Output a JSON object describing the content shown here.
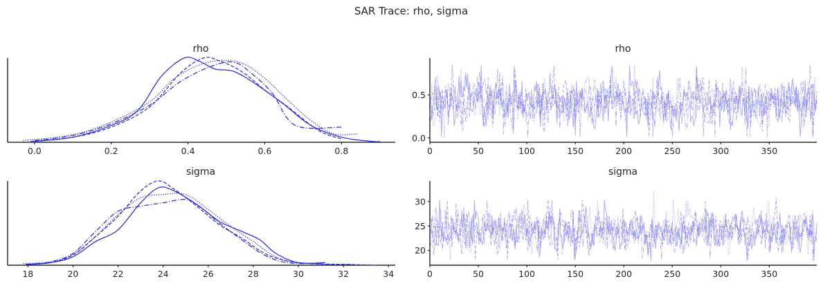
{
  "figure": {
    "title": "SAR Trace: rho, sigma"
  },
  "colors": {
    "line": "#2b2bd6",
    "trace": "#6b6bf0"
  },
  "chart_data": [
    {
      "id": "rho-kde",
      "type": "line",
      "title": "rho",
      "xlabel": "",
      "ylabel": "",
      "xlim": [
        -0.07,
        0.94
      ],
      "ylim": [
        0,
        1
      ],
      "xticks": [
        0.0,
        0.2,
        0.4,
        0.6,
        0.8
      ],
      "xtick_labels": [
        "0.0",
        "0.2",
        "0.4",
        "0.6",
        "0.8"
      ],
      "grid": false,
      "series": [
        {
          "style": "solid",
          "x": [
            0.0,
            0.1,
            0.2,
            0.27,
            0.33,
            0.39,
            0.43,
            0.47,
            0.52,
            0.58,
            0.65,
            0.72,
            0.8,
            0.88,
            0.9
          ],
          "y": [
            0.01,
            0.06,
            0.2,
            0.38,
            0.78,
            1.0,
            0.96,
            0.87,
            0.84,
            0.68,
            0.45,
            0.2,
            0.06,
            0.01,
            0.01
          ]
        },
        {
          "style": "dashed",
          "x": [
            -0.01,
            0.1,
            0.2,
            0.3,
            0.38,
            0.44,
            0.48,
            0.54,
            0.6,
            0.66,
            0.74,
            0.8
          ],
          "y": [
            0.01,
            0.06,
            0.18,
            0.42,
            0.82,
            1.0,
            0.97,
            0.84,
            0.62,
            0.42,
            0.14,
            0.04
          ]
        },
        {
          "style": "dotted",
          "x": [
            -0.03,
            0.1,
            0.2,
            0.3,
            0.36,
            0.42,
            0.48,
            0.54,
            0.6,
            0.66,
            0.72,
            0.78,
            0.84
          ],
          "y": [
            0.02,
            0.09,
            0.24,
            0.48,
            0.74,
            0.9,
            0.97,
            0.94,
            0.76,
            0.5,
            0.26,
            0.1,
            0.1
          ]
        },
        {
          "style": "dashdot",
          "x": [
            0.0,
            0.1,
            0.2,
            0.3,
            0.38,
            0.46,
            0.52,
            0.57,
            0.62,
            0.68,
            0.8
          ],
          "y": [
            0.02,
            0.08,
            0.22,
            0.44,
            0.72,
            0.9,
            0.95,
            0.8,
            0.58,
            0.2,
            0.18
          ]
        }
      ]
    },
    {
      "id": "rho-trace",
      "type": "line",
      "title": "rho",
      "xlabel": "",
      "ylabel": "",
      "xlim": [
        0,
        399
      ],
      "ylim": [
        -0.05,
        0.93
      ],
      "xticks": [
        0,
        50,
        100,
        150,
        200,
        250,
        300,
        350
      ],
      "xtick_labels": [
        "0",
        "50",
        "100",
        "150",
        "200",
        "250",
        "300",
        "350"
      ],
      "yticks": [
        0.0,
        0.5
      ],
      "ytick_labels": [
        "0.0",
        "0.5"
      ],
      "grid": false,
      "trace": {
        "draws": 400,
        "chains": 4,
        "center": 0.43,
        "spread": 0.13,
        "min": -0.02,
        "max": 0.88
      }
    },
    {
      "id": "sigma-kde",
      "type": "line",
      "title": "sigma",
      "xlabel": "",
      "ylabel": "",
      "xlim": [
        17.1,
        34.3
      ],
      "ylim": [
        0,
        1
      ],
      "xticks": [
        18,
        20,
        22,
        24,
        26,
        28,
        30,
        32,
        34
      ],
      "xtick_labels": [
        "18",
        "20",
        "22",
        "24",
        "26",
        "28",
        "30",
        "32",
        "34"
      ],
      "grid": false,
      "series": [
        {
          "style": "solid",
          "x": [
            18.0,
            19.0,
            20.0,
            21.0,
            22.0,
            23.0,
            23.8,
            24.5,
            25.5,
            26.5,
            27.5,
            28.3,
            29.0,
            30.0,
            31.2
          ],
          "y": [
            0.01,
            0.03,
            0.1,
            0.28,
            0.42,
            0.74,
            0.92,
            0.88,
            0.72,
            0.52,
            0.4,
            0.3,
            0.14,
            0.03,
            0.03
          ]
        },
        {
          "style": "dashed",
          "x": [
            18.0,
            19.0,
            20.0,
            21.0,
            22.0,
            23.0,
            23.8,
            24.5,
            25.5,
            26.5,
            27.5,
            28.5,
            29.5,
            30.5,
            32.0,
            33.5
          ],
          "y": [
            0.01,
            0.03,
            0.12,
            0.34,
            0.58,
            0.88,
            1.0,
            0.9,
            0.7,
            0.48,
            0.32,
            0.14,
            0.05,
            0.02,
            0.01,
            0.0
          ]
        },
        {
          "style": "dotted",
          "x": [
            17.8,
            19.0,
            20.0,
            21.0,
            22.0,
            23.0,
            24.0,
            25.0,
            26.0,
            27.0,
            28.0,
            29.0,
            30.0,
            31.5,
            32.5
          ],
          "y": [
            0.02,
            0.04,
            0.13,
            0.34,
            0.6,
            0.8,
            0.84,
            0.84,
            0.66,
            0.46,
            0.28,
            0.1,
            0.03,
            0.01,
            0.01
          ]
        },
        {
          "style": "dashdot",
          "x": [
            17.9,
            19.0,
            20.0,
            21.0,
            22.0,
            23.0,
            24.0,
            25.0,
            25.7,
            26.5,
            27.5,
            28.5,
            29.5,
            31.0
          ],
          "y": [
            0.01,
            0.04,
            0.14,
            0.4,
            0.64,
            0.7,
            0.74,
            0.78,
            0.68,
            0.5,
            0.3,
            0.12,
            0.03,
            0.02
          ]
        }
      ]
    },
    {
      "id": "sigma-trace",
      "type": "line",
      "title": "sigma",
      "xlabel": "",
      "ylabel": "",
      "xlim": [
        0,
        399
      ],
      "ylim": [
        17.0,
        34.2
      ],
      "xticks": [
        0,
        50,
        100,
        150,
        200,
        250,
        300,
        350
      ],
      "xtick_labels": [
        "0",
        "50",
        "100",
        "150",
        "200",
        "250",
        "300",
        "350"
      ],
      "yticks": [
        20,
        25,
        30
      ],
      "ytick_labels": [
        "20",
        "25",
        "30"
      ],
      "grid": false,
      "trace": {
        "draws": 400,
        "chains": 4,
        "center": 24.2,
        "spread": 1.9,
        "min": 17.9,
        "max": 33.6
      }
    }
  ]
}
